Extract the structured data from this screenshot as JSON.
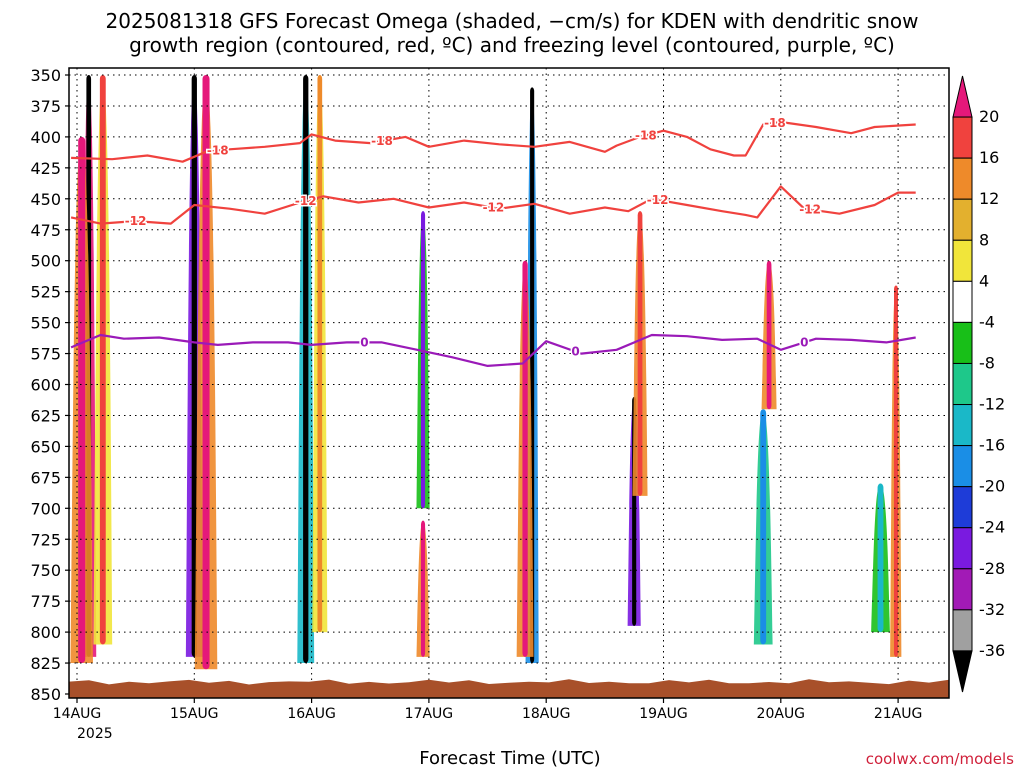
{
  "chart_data": {
    "type": "heatmap",
    "title_line1": "2025081318 GFS Forecast Omega (shaded, −cm/s) for KDEN with dendritic snow",
    "title_line2": "growth region (contoured, red, ºC) and freezing level (contoured, purple, ºC)",
    "xlabel": "Forecast Time (UTC)",
    "x_ticks": [
      "14AUG",
      "15AUG",
      "16AUG",
      "17AUG",
      "18AUG",
      "19AUG",
      "20AUG",
      "21AUG"
    ],
    "x_year": "2025",
    "y_ticks": [
      350,
      375,
      400,
      425,
      450,
      475,
      500,
      525,
      550,
      575,
      600,
      625,
      650,
      675,
      700,
      725,
      750,
      775,
      800,
      825,
      850
    ],
    "ylim": [
      350,
      850
    ],
    "xlim_days": [
      13.95,
      21.15
    ],
    "colorbar": {
      "labels": [
        "20",
        "16",
        "12",
        "8",
        "4",
        "-4",
        "-8",
        "-12",
        "-16",
        "-20",
        "-24",
        "-28",
        "-32",
        "-36"
      ],
      "colors": [
        "#e5187a",
        "#f0423e",
        "#ee8a2a",
        "#e3b02e",
        "#f1e53a",
        "#ffffff",
        "#18bf18",
        "#1ec88a",
        "#1ab8c8",
        "#1a8ee6",
        "#1e3cd8",
        "#7a1ae0",
        "#a21ab6",
        "#a0a0a0",
        "#000000"
      ]
    },
    "omega_columns": [
      {
        "t": 14.1,
        "w": 0.04,
        "top": 350,
        "bot": 820,
        "core": "#000000",
        "halo": "#e5187a"
      },
      {
        "t": 14.04,
        "w": 0.06,
        "top": 400,
        "bot": 825,
        "core": "#e5187a",
        "halo": "#ee8a2a"
      },
      {
        "t": 14.22,
        "w": 0.05,
        "top": 350,
        "bot": 810,
        "core": "#f0423e",
        "halo": "#f1e53a"
      },
      {
        "t": 15.0,
        "w": 0.045,
        "top": 350,
        "bot": 820,
        "core": "#000000",
        "halo": "#7a1ae0"
      },
      {
        "t": 15.1,
        "w": 0.06,
        "top": 350,
        "bot": 830,
        "core": "#e5187a",
        "halo": "#ee8a2a"
      },
      {
        "t": 15.95,
        "w": 0.045,
        "top": 350,
        "bot": 825,
        "core": "#000000",
        "halo": "#1ab8c8"
      },
      {
        "t": 16.07,
        "w": 0.04,
        "top": 350,
        "bot": 800,
        "core": "#ee8a2a",
        "halo": "#f1e53a"
      },
      {
        "t": 16.95,
        "w": 0.035,
        "top": 460,
        "bot": 700,
        "core": "#7a1ae0",
        "halo": "#18bf18"
      },
      {
        "t": 16.95,
        "w": 0.035,
        "top": 710,
        "bot": 820,
        "core": "#e5187a",
        "halo": "#ee8a2a"
      },
      {
        "t": 17.88,
        "w": 0.035,
        "top": 360,
        "bot": 825,
        "core": "#000000",
        "halo": "#1a8ee6"
      },
      {
        "t": 17.82,
        "w": 0.045,
        "top": 500,
        "bot": 820,
        "core": "#e5187a",
        "halo": "#ee8a2a"
      },
      {
        "t": 18.75,
        "w": 0.035,
        "top": 610,
        "bot": 795,
        "core": "#000000",
        "halo": "#7a1ae0"
      },
      {
        "t": 18.8,
        "w": 0.04,
        "top": 460,
        "bot": 690,
        "core": "#f0423e",
        "halo": "#ee8a2a"
      },
      {
        "t": 19.9,
        "w": 0.04,
        "top": 500,
        "bot": 620,
        "core": "#e5187a",
        "halo": "#ee8a2a"
      },
      {
        "t": 19.85,
        "w": 0.05,
        "top": 620,
        "bot": 810,
        "core": "#1a8ee6",
        "halo": "#1ec88a"
      },
      {
        "t": 20.98,
        "w": 0.03,
        "top": 520,
        "bot": 820,
        "core": "#f0423e",
        "halo": "#ee8a2a"
      },
      {
        "t": 20.85,
        "w": 0.05,
        "top": 680,
        "bot": 800,
        "core": "#1ab8c8",
        "halo": "#18bf18"
      }
    ],
    "contours": [
      {
        "label": "-18",
        "color": "#f0423e",
        "x": [
          13.95,
          14.3,
          14.6,
          14.9,
          15.1,
          15.3,
          15.6,
          15.9,
          16.0,
          16.2,
          16.5,
          16.8,
          17.0,
          17.3,
          17.6,
          17.9,
          18.2,
          18.5,
          18.6,
          18.8,
          19.0,
          19.2,
          19.4,
          19.6,
          19.7,
          19.85,
          20.0,
          20.3,
          20.6,
          20.8,
          21.15
        ],
        "y": [
          417,
          418,
          415,
          420,
          412,
          410,
          408,
          405,
          398,
          403,
          405,
          400,
          408,
          403,
          406,
          408,
          404,
          412,
          407,
          400,
          395,
          400,
          410,
          415,
          415,
          390,
          388,
          392,
          397,
          392,
          390
        ],
        "label_x": [
          15.2,
          16.6,
          18.85,
          19.95
        ]
      },
      {
        "label": "-12",
        "color": "#f0423e",
        "x": [
          13.95,
          14.2,
          14.5,
          14.8,
          15.0,
          15.3,
          15.6,
          15.9,
          16.1,
          16.4,
          16.7,
          17.0,
          17.3,
          17.6,
          17.9,
          18.2,
          18.5,
          18.7,
          18.9,
          19.2,
          19.5,
          19.7,
          19.8,
          20.0,
          20.2,
          20.5,
          20.8,
          21.0,
          21.15
        ],
        "y": [
          465,
          470,
          468,
          470,
          455,
          458,
          462,
          453,
          448,
          453,
          450,
          457,
          453,
          458,
          454,
          462,
          457,
          460,
          450,
          455,
          460,
          463,
          465,
          440,
          458,
          462,
          455,
          445,
          445
        ],
        "label_x": [
          14.5,
          15.95,
          17.55,
          18.95,
          20.25
        ]
      },
      {
        "label": "0",
        "color": "#9a1ab8",
        "x": [
          13.95,
          14.2,
          14.4,
          14.7,
          15.0,
          15.2,
          15.5,
          15.8,
          16.0,
          16.3,
          16.6,
          16.9,
          17.2,
          17.5,
          17.8,
          18.0,
          18.3,
          18.6,
          18.9,
          19.2,
          19.5,
          19.8,
          20.0,
          20.3,
          20.6,
          20.9,
          21.15
        ],
        "y": [
          570,
          560,
          563,
          562,
          566,
          568,
          566,
          566,
          568,
          566,
          566,
          572,
          578,
          585,
          583,
          565,
          575,
          572,
          560,
          561,
          564,
          563,
          572,
          563,
          564,
          566,
          562
        ],
        "label_x": [
          16.45,
          18.25,
          20.2
        ]
      }
    ]
  },
  "credit": "coolwx.com/models"
}
